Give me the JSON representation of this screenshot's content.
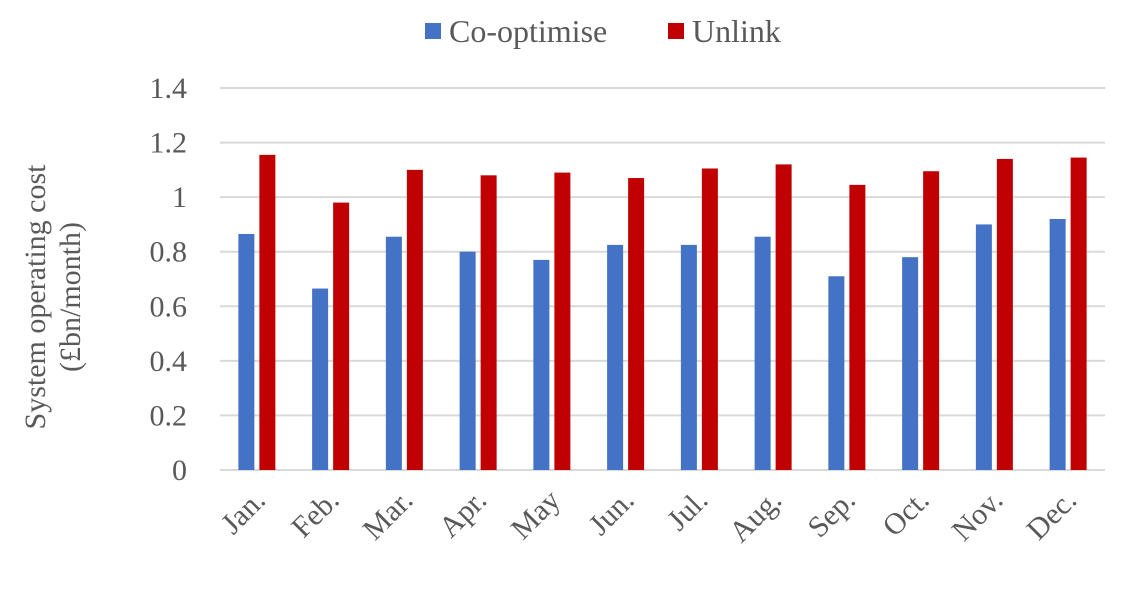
{
  "chart_data": {
    "type": "bar",
    "categories": [
      "Jan.",
      "Feb.",
      "Mar.",
      "Apr.",
      "May",
      "Jun.",
      "Jul.",
      "Aug.",
      "Sep.",
      "Oct.",
      "Nov.",
      "Dec."
    ],
    "series": [
      {
        "name": "Co-optimise",
        "color": "#4472c4",
        "values": [
          0.865,
          0.665,
          0.855,
          0.8,
          0.77,
          0.825,
          0.825,
          0.855,
          0.71,
          0.78,
          0.9,
          0.92
        ]
      },
      {
        "name": "Unlink",
        "color": "#c00000",
        "values": [
          1.155,
          0.98,
          1.1,
          1.08,
          1.09,
          1.07,
          1.105,
          1.12,
          1.045,
          1.095,
          1.14,
          1.145
        ]
      }
    ],
    "ylabel_lines": [
      "System operating cost",
      "(£bn/month)"
    ],
    "xlabel": "",
    "ylim": [
      0,
      1.4
    ],
    "yticks": [
      "0",
      "0.2",
      "0.4",
      "0.6",
      "0.8",
      "1",
      "1.2",
      "1.4"
    ],
    "grid": true,
    "legend_position": "top"
  }
}
